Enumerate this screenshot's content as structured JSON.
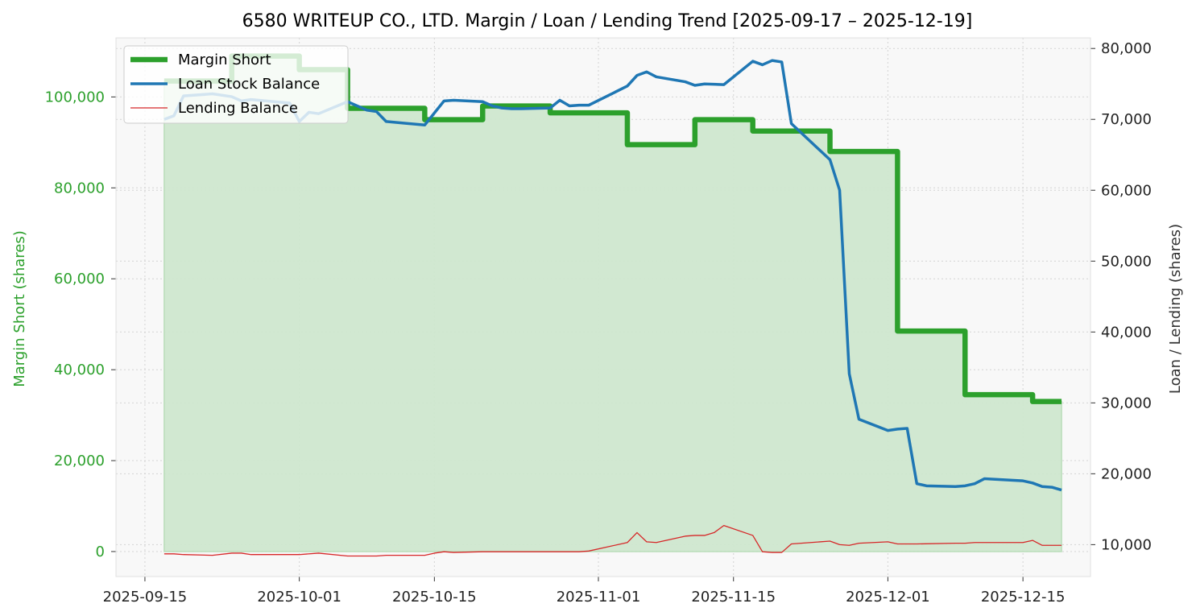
{
  "chart_data": {
    "type": "line",
    "title": "6580 WRITEUP CO., LTD. Margin / Loan / Lending Trend [2025-09-17 – 2025-12-19]",
    "ylabel_left": "Margin Short (shares)",
    "ylabel_right": "Loan / Lending (shares)",
    "xlabel": "",
    "x_ticks": [
      "2025-09-15",
      "2025-10-01",
      "2025-10-15",
      "2025-11-01",
      "2025-11-15",
      "2025-12-01",
      "2025-12-15"
    ],
    "y_left_ticks": [
      0,
      20000,
      40000,
      60000,
      80000,
      100000
    ],
    "y_left_tick_labels": [
      "0",
      "20,000",
      "40,000",
      "60,000",
      "80,000",
      "100,000"
    ],
    "y_right_ticks": [
      10000,
      20000,
      30000,
      40000,
      50000,
      60000,
      70000,
      80000
    ],
    "y_right_tick_labels": [
      "10,000",
      "20,000",
      "30,000",
      "40,000",
      "50,000",
      "60,000",
      "70,000",
      "80,000"
    ],
    "xlim": [
      "2025-09-12",
      "2025-12-22"
    ],
    "ylim_left": [
      -5500,
      113000
    ],
    "ylim_right": [
      5500,
      81500
    ],
    "grid": true,
    "legend_position": "top-left",
    "colors": {
      "margin": "#2ca02c",
      "loan": "#1f77b4",
      "lending": "#d62728",
      "fill": "#cfe8cf",
      "plot_bg": "#f8f8f8"
    },
    "series": [
      {
        "name": "Margin Short",
        "axis": "left",
        "style": "step",
        "fill": true,
        "x": [
          "2025-09-17",
          "2025-09-22",
          "2025-09-24",
          "2025-10-01",
          "2025-10-06",
          "2025-10-09",
          "2025-10-14",
          "2025-10-20",
          "2025-10-27",
          "2025-11-04",
          "2025-11-11",
          "2025-11-17",
          "2025-11-25",
          "2025-12-02",
          "2025-12-09",
          "2025-12-16",
          "2025-12-19"
        ],
        "values": [
          103500,
          103500,
          109000,
          106000,
          97500,
          97500,
          95000,
          98000,
          96500,
          89500,
          95000,
          92500,
          88000,
          48500,
          34500,
          33000,
          33000
        ]
      },
      {
        "name": "Loan Stock Balance",
        "axis": "right",
        "style": "line",
        "x": [
          "2025-09-17",
          "2025-09-18",
          "2025-09-19",
          "2025-09-22",
          "2025-09-24",
          "2025-09-25",
          "2025-09-26",
          "2025-09-30",
          "2025-10-01",
          "2025-10-02",
          "2025-10-03",
          "2025-10-06",
          "2025-10-08",
          "2025-10-09",
          "2025-10-10",
          "2025-10-14",
          "2025-10-16",
          "2025-10-17",
          "2025-10-20",
          "2025-10-21",
          "2025-10-22",
          "2025-10-23",
          "2025-10-24",
          "2025-10-27",
          "2025-10-28",
          "2025-10-29",
          "2025-10-30",
          "2025-10-31",
          "2025-11-04",
          "2025-11-05",
          "2025-11-06",
          "2025-11-07",
          "2025-11-10",
          "2025-11-11",
          "2025-11-12",
          "2025-11-14",
          "2025-11-17",
          "2025-11-18",
          "2025-11-19",
          "2025-11-20",
          "2025-11-21",
          "2025-11-25",
          "2025-11-26",
          "2025-11-27",
          "2025-11-28",
          "2025-12-01",
          "2025-12-02",
          "2025-12-03",
          "2025-12-04",
          "2025-12-05",
          "2025-12-08",
          "2025-12-09",
          "2025-12-10",
          "2025-12-11",
          "2025-12-15",
          "2025-12-16",
          "2025-12-17",
          "2025-12-18",
          "2025-12-19"
        ],
        "values": [
          70000,
          70500,
          73300,
          73600,
          73200,
          72600,
          72800,
          72300,
          69700,
          71000,
          70800,
          72500,
          71300,
          71100,
          69700,
          69200,
          72600,
          72700,
          72500,
          71900,
          71600,
          71500,
          71500,
          71600,
          72700,
          71900,
          72000,
          72000,
          74700,
          76200,
          76700,
          76000,
          75300,
          74800,
          75000,
          74900,
          78200,
          77700,
          78300,
          78100,
          69400,
          64300,
          60000,
          34100,
          27700,
          26100,
          26300,
          26400,
          18600,
          18300,
          18200,
          18300,
          18600,
          19300,
          19000,
          18700,
          18200,
          18100,
          17700
        ]
      },
      {
        "name": "Lending Balance",
        "axis": "right",
        "style": "line",
        "x": [
          "2025-09-17",
          "2025-09-18",
          "2025-09-19",
          "2025-09-22",
          "2025-09-24",
          "2025-09-25",
          "2025-09-26",
          "2025-10-01",
          "2025-10-03",
          "2025-10-06",
          "2025-10-09",
          "2025-10-10",
          "2025-10-14",
          "2025-10-15",
          "2025-10-16",
          "2025-10-17",
          "2025-10-20",
          "2025-10-30",
          "2025-10-31",
          "2025-11-04",
          "2025-11-05",
          "2025-11-06",
          "2025-11-07",
          "2025-11-10",
          "2025-11-11",
          "2025-11-12",
          "2025-11-13",
          "2025-11-14",
          "2025-11-17",
          "2025-11-18",
          "2025-11-19",
          "2025-11-20",
          "2025-11-21",
          "2025-11-25",
          "2025-11-26",
          "2025-11-27",
          "2025-11-28",
          "2025-12-01",
          "2025-12-02",
          "2025-12-03",
          "2025-12-04",
          "2025-12-08",
          "2025-12-09",
          "2025-12-10",
          "2025-12-15",
          "2025-12-16",
          "2025-12-17",
          "2025-12-19"
        ],
        "values": [
          8700,
          8700,
          8600,
          8500,
          8800,
          8800,
          8600,
          8600,
          8800,
          8400,
          8400,
          8500,
          8500,
          8800,
          9000,
          8900,
          9000,
          9000,
          9100,
          10300,
          11700,
          10400,
          10300,
          11200,
          11300,
          11300,
          11700,
          12700,
          11300,
          9000,
          8900,
          8900,
          10100,
          10500,
          10000,
          9900,
          10200,
          10400,
          10100,
          10100,
          10100,
          10200,
          10200,
          10300,
          10300,
          10600,
          9900,
          9900
        ]
      }
    ]
  }
}
